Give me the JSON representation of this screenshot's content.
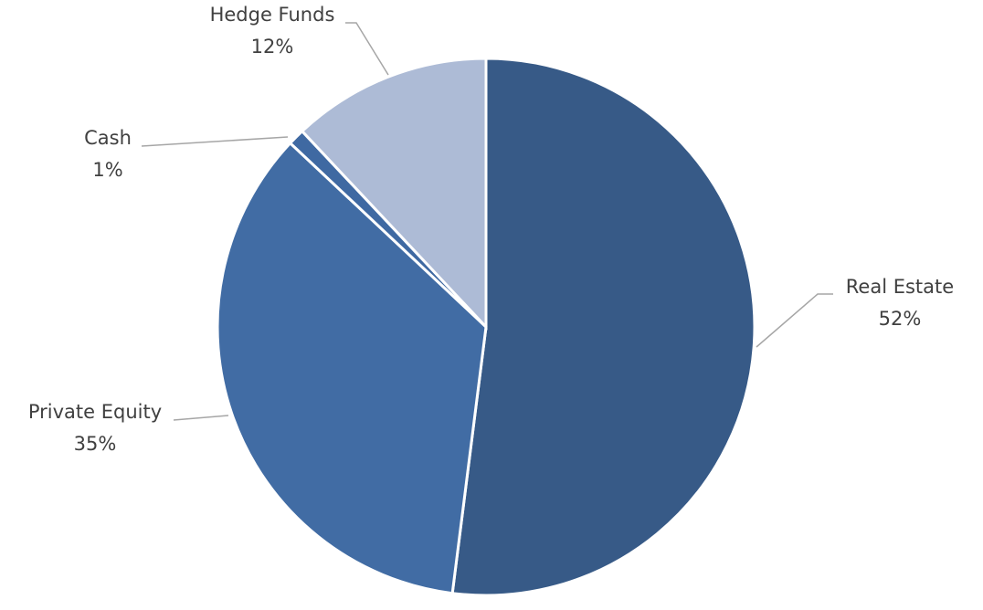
{
  "chart_data": {
    "type": "pie",
    "categories": [
      "Real Estate",
      "Private Equity",
      "Cash",
      "Hedge Funds"
    ],
    "values": [
      52,
      35,
      1,
      12
    ],
    "value_labels": [
      "52%",
      "35%",
      "1%",
      "12%"
    ],
    "colors": [
      "#375a87",
      "#416ca4",
      "#3f69a2",
      "#adbbd6"
    ]
  }
}
